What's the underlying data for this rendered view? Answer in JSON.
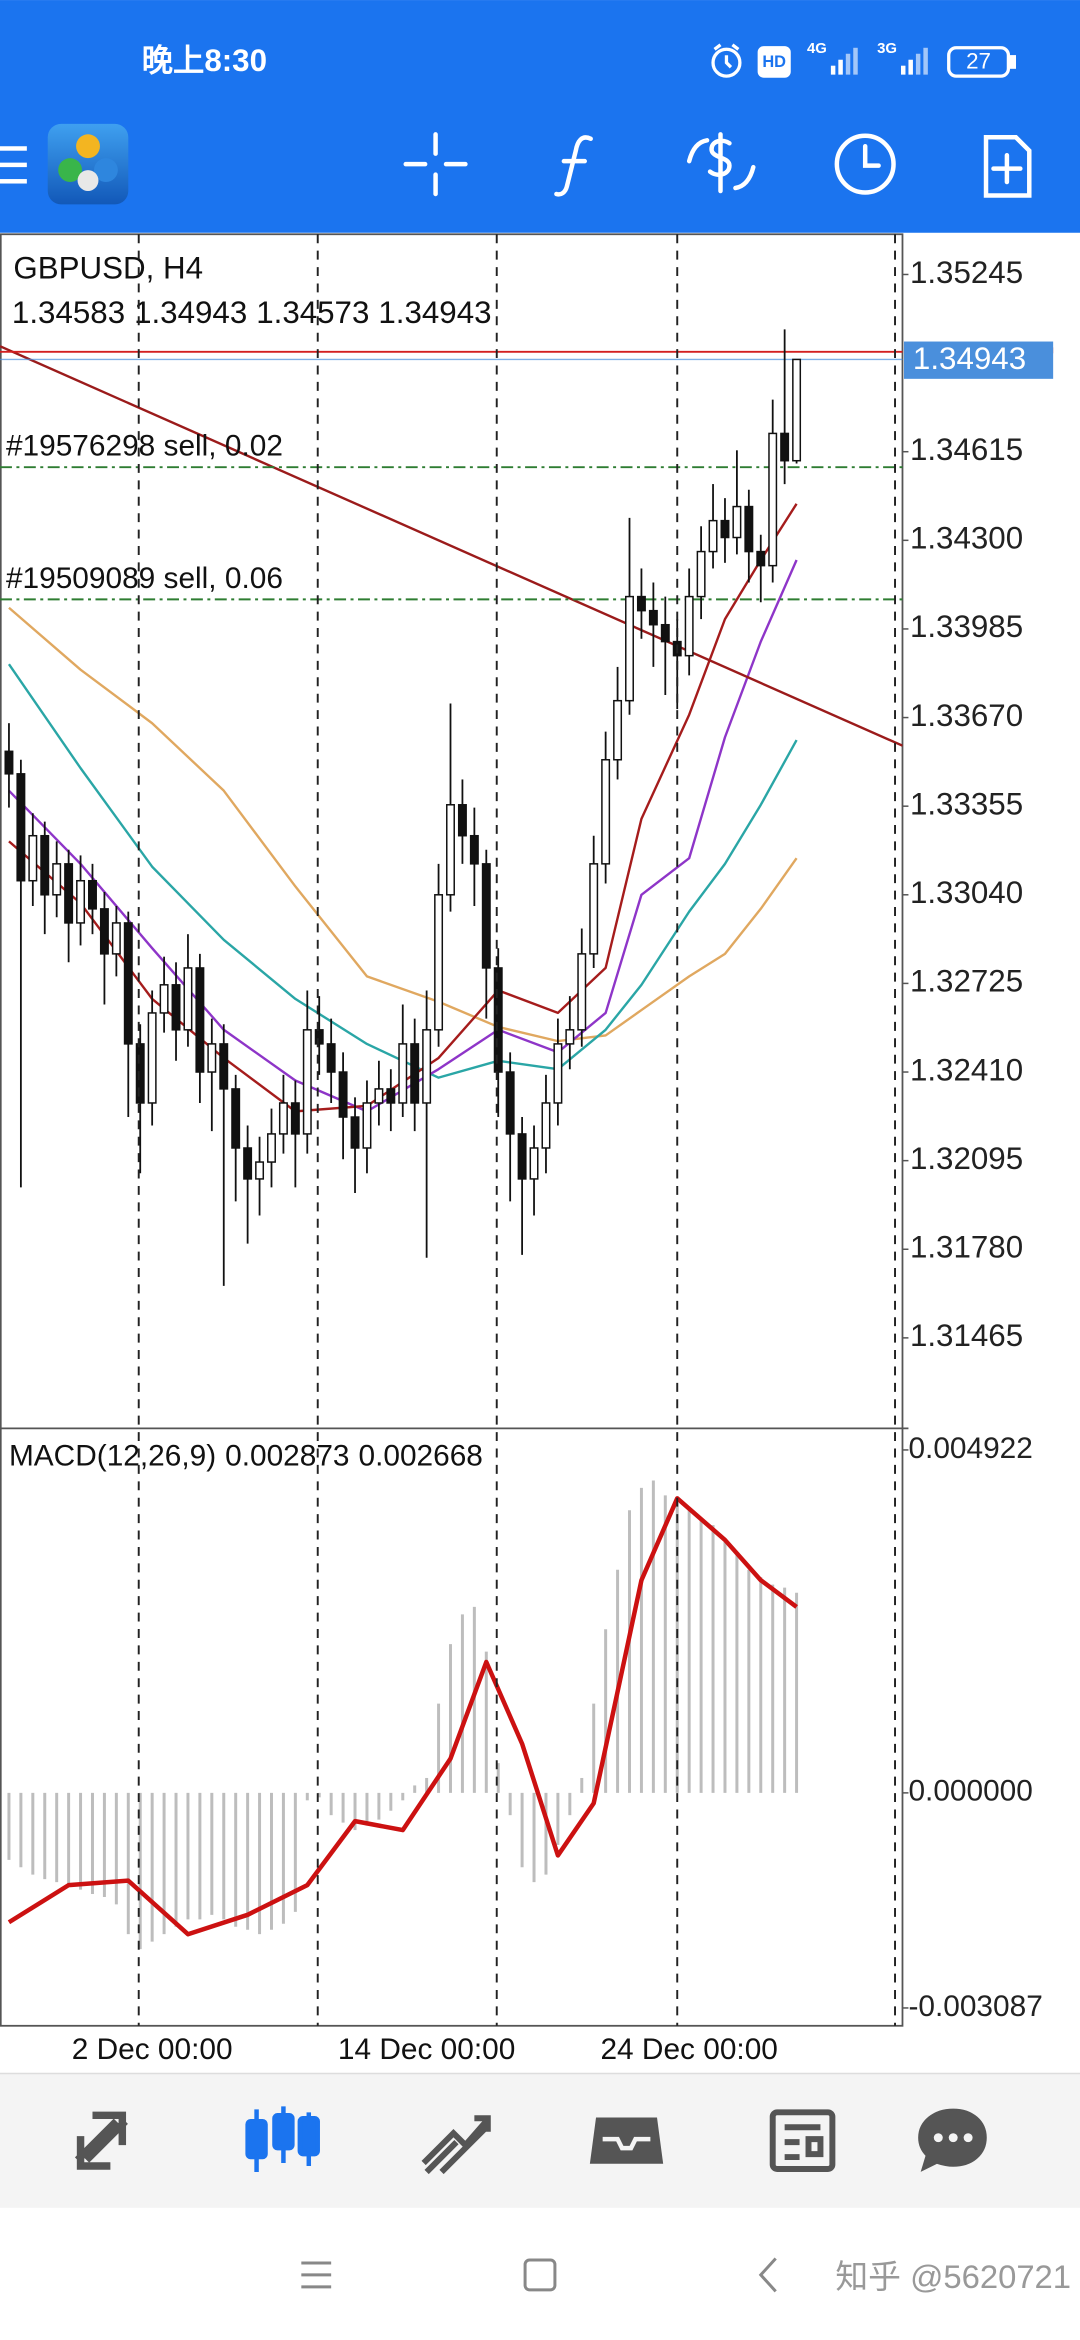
{
  "status_bar": {
    "time": "晚上8:30",
    "hd": "HD",
    "network": [
      "4G",
      "3G"
    ],
    "battery": 27
  },
  "chart_data": {
    "type": "candlestick",
    "symbol": "GBPUSD, H4",
    "ohlc": [
      1.34583,
      1.34943,
      1.34573,
      1.34943
    ],
    "xlim": [
      -0.75,
      74.875
    ],
    "ylim": [
      1.31146,
      1.35388
    ],
    "yticks": [
      1.35245,
      1.34615,
      {
        "value": 1.343,
        "label": "1.34300"
      },
      1.33985,
      {
        "value": 1.3367,
        "label": "1.33670"
      },
      1.33355,
      {
        "value": 1.3304,
        "label": "1.33040"
      },
      1.32725,
      {
        "value": 1.3241,
        "label": "1.32410"
      },
      1.32095,
      {
        "value": 1.3178,
        "label": "1.31780"
      },
      1.31465
    ],
    "bid": 1.34943,
    "bid_color": "#4a8fdc",
    "ask": 1.3497,
    "ask_color": "#d32020",
    "candles": [
      [
        1.3355,
        1.3365,
        1.3335,
        1.3347
      ],
      [
        1.3347,
        1.3352,
        1.32,
        1.3309
      ],
      [
        1.3309,
        1.3333,
        1.33,
        1.3325
      ],
      [
        1.3325,
        1.333,
        1.329,
        1.3304
      ],
      [
        1.3304,
        1.3323,
        1.3296,
        1.3315
      ],
      [
        1.3315,
        1.332,
        1.328,
        1.3294
      ],
      [
        1.3294,
        1.3318,
        1.3286,
        1.3309
      ],
      [
        1.3309,
        1.3315,
        1.329,
        1.3299
      ],
      [
        1.3299,
        1.3305,
        1.3265,
        1.3283
      ],
      [
        1.3283,
        1.33,
        1.3275,
        1.3294
      ],
      [
        1.3294,
        1.3298,
        1.3225,
        1.3251
      ],
      [
        1.3251,
        1.3258,
        1.3205,
        1.323
      ],
      [
        1.323,
        1.327,
        1.3222,
        1.3262
      ],
      [
        1.3262,
        1.3282,
        1.3255,
        1.3272
      ],
      [
        1.3272,
        1.328,
        1.3245,
        1.3256
      ],
      [
        1.3256,
        1.329,
        1.325,
        1.3278
      ],
      [
        1.3278,
        1.3283,
        1.323,
        1.3241
      ],
      [
        1.3241,
        1.326,
        1.322,
        1.3251
      ],
      [
        1.3251,
        1.3258,
        1.3165,
        1.3235
      ],
      [
        1.3235,
        1.324,
        1.3195,
        1.3214
      ],
      [
        1.3214,
        1.3222,
        1.318,
        1.3203
      ],
      [
        1.3203,
        1.3218,
        1.319,
        1.3209
      ],
      [
        1.3209,
        1.3228,
        1.32,
        1.3219
      ],
      [
        1.3219,
        1.324,
        1.3212,
        1.323
      ],
      [
        1.323,
        1.3238,
        1.32,
        1.3219
      ],
      [
        1.3219,
        1.327,
        1.3212,
        1.3256
      ],
      [
        1.3256,
        1.3268,
        1.324,
        1.3251
      ],
      [
        1.3251,
        1.326,
        1.323,
        1.3241
      ],
      [
        1.3241,
        1.3248,
        1.321,
        1.3225
      ],
      [
        1.3225,
        1.3232,
        1.3198,
        1.3214
      ],
      [
        1.3214,
        1.3238,
        1.3205,
        1.323
      ],
      [
        1.323,
        1.3245,
        1.3222,
        1.3235
      ],
      [
        1.3235,
        1.3242,
        1.322,
        1.323
      ],
      [
        1.323,
        1.3265,
        1.3225,
        1.3251
      ],
      [
        1.3251,
        1.326,
        1.322,
        1.323
      ],
      [
        1.323,
        1.327,
        1.3175,
        1.3256
      ],
      [
        1.3256,
        1.3315,
        1.325,
        1.3304
      ],
      [
        1.3304,
        1.3372,
        1.3298,
        1.3336
      ],
      [
        1.3336,
        1.3345,
        1.3315,
        1.3325
      ],
      [
        1.3325,
        1.3335,
        1.33,
        1.3315
      ],
      [
        1.3315,
        1.332,
        1.326,
        1.3278
      ],
      [
        1.3278,
        1.3285,
        1.3225,
        1.3241
      ],
      [
        1.3241,
        1.3248,
        1.3195,
        1.3219
      ],
      [
        1.3219,
        1.3225,
        1.3176,
        1.3203
      ],
      [
        1.3203,
        1.3222,
        1.319,
        1.3214
      ],
      [
        1.3214,
        1.324,
        1.3205,
        1.323
      ],
      [
        1.323,
        1.326,
        1.3222,
        1.3251
      ],
      [
        1.3251,
        1.3268,
        1.3242,
        1.3256
      ],
      [
        1.3256,
        1.3292,
        1.325,
        1.3283
      ],
      [
        1.3283,
        1.3325,
        1.3278,
        1.3315
      ],
      [
        1.3315,
        1.3362,
        1.3308,
        1.3352
      ],
      [
        1.3352,
        1.3385,
        1.3345,
        1.3373
      ],
      [
        1.3373,
        1.3438,
        1.3368,
        1.341
      ],
      [
        1.341,
        1.342,
        1.3395,
        1.3405
      ],
      [
        1.3405,
        1.3415,
        1.3385,
        1.34
      ],
      [
        1.34,
        1.341,
        1.3375,
        1.3394
      ],
      [
        1.3394,
        1.3402,
        1.337,
        1.3389
      ],
      [
        1.3389,
        1.342,
        1.3382,
        1.341
      ],
      [
        1.341,
        1.3435,
        1.3402,
        1.3426
      ],
      [
        1.3426,
        1.345,
        1.342,
        1.3437
      ],
      [
        1.3437,
        1.3445,
        1.3422,
        1.3431
      ],
      [
        1.3431,
        1.3462,
        1.3425,
        1.3442
      ],
      [
        1.3442,
        1.3448,
        1.3415,
        1.3426
      ],
      [
        1.3426,
        1.3432,
        1.3408,
        1.3421
      ],
      [
        1.3421,
        1.348,
        1.3415,
        1.3468
      ],
      [
        1.3468,
        1.3505,
        1.345,
        1.34583
      ],
      [
        1.34583,
        1.34943,
        1.34573,
        1.34943
      ]
    ],
    "moving_averages": {
      "x": [
        0,
        6,
        12,
        18,
        24,
        30,
        36,
        41,
        46,
        50,
        53,
        57,
        60,
        63,
        66
      ],
      "series": [
        {
          "color": "#e0a860",
          "values": [
            1.3406,
            1.3384,
            1.3365,
            1.3341,
            1.3307,
            1.3275,
            1.3266,
            1.3257,
            1.3252,
            1.3254,
            1.3263,
            1.3275,
            1.3283,
            1.3299,
            1.3317
          ]
        },
        {
          "color": "#2aa6a6",
          "values": [
            1.3386,
            1.3349,
            1.3314,
            1.3288,
            1.3267,
            1.3251,
            1.3239,
            1.3245,
            1.3242,
            1.3256,
            1.3272,
            1.3298,
            1.3315,
            1.3336,
            1.3359
          ]
        },
        {
          "color": "#8e35c8",
          "values": [
            1.3341,
            1.3315,
            1.3285,
            1.3256,
            1.3238,
            1.3227,
            1.3242,
            1.3256,
            1.3248,
            1.3262,
            1.3304,
            1.3317,
            1.336,
            1.3394,
            1.3423
          ]
        },
        {
          "color": "#a51c1c",
          "values": [
            1.3323,
            1.3301,
            1.3267,
            1.3246,
            1.3227,
            1.3229,
            1.3246,
            1.327,
            1.3262,
            1.3278,
            1.3331,
            1.3368,
            1.3402,
            1.3423,
            1.3443
          ]
        }
      ]
    },
    "trendline": {
      "x": [
        -0.75,
        74.875
      ],
      "values": [
        1.3499,
        1.3357
      ],
      "color": "#9b1b1b"
    },
    "orders": [
      {
        "label": "#19576298 sell, 0.02",
        "price": 1.3456
      },
      {
        "label": "#19509089 sell, 0.06",
        "price": 1.3409
      }
    ],
    "order_color": "#2e7d32",
    "xgrid": [
      10.875,
      25.875,
      40.875,
      56,
      74.25
    ],
    "xticks": [
      {
        "value": 12,
        "label": "2 Dec 00:00"
      },
      {
        "value": 35,
        "label": "14 Dec 00:00"
      },
      {
        "value": 57,
        "label": "24 Dec 00:00"
      }
    ],
    "macd": {
      "title": "MACD(12,26,9)",
      "main": 0.002873,
      "signal": 0.002668,
      "ylim": [
        -0.003343,
        0.005221
      ],
      "yticks": [
        0.004922,
        {
          "value": 0,
          "label": "0.000000"
        },
        -0.003087
      ],
      "histogram_color": "#bdbdbd",
      "histogram": [
        -0.000961,
        -0.001068,
        -0.001174,
        -0.001238,
        -0.001281,
        -0.001324,
        -0.001388,
        -0.001452,
        -0.001495,
        -0.001601,
        -0.002028,
        -0.002242,
        -0.002135,
        -0.002028,
        -0.001922,
        -0.001815,
        -0.001815,
        -0.001751,
        -0.001815,
        -0.001922,
        -0.001964,
        -0.002028,
        -0.001964,
        -0.001879,
        -0.001708,
        -0.000107,
        -6.4e-05,
        -0.00032,
        -0.000427,
        -0.000534,
        -0.00047,
        -0.000384,
        -0.000256,
        -0.000107,
        0.000107,
        0.000214,
        0.001281,
        0.002135,
        0.002562,
        0.002669,
        0.002028,
        0.000427,
        -0.00032,
        -0.001068,
        -0.001281,
        -0.001174,
        -0.000747,
        -0.00032,
        0.000214,
        0.001281,
        0.002349,
        0.003203,
        0.004057,
        0.004377,
        0.004484,
        0.00427,
        0.004163,
        0.004057,
        0.00395,
        0.003843,
        0.00363,
        0.003416,
        0.003203,
        0.003096,
        0.002989,
        0.002946,
        0.002873
      ],
      "signal_line": {
        "color": "#cc1111",
        "x": [
          0,
          5,
          10,
          15,
          20,
          25,
          29,
          33,
          37,
          40,
          43,
          46,
          49,
          53,
          56,
          60,
          63,
          66
        ],
        "values": [
          -0.001857,
          -0.001324,
          -0.00126,
          -0.002028,
          -0.001751,
          -0.001324,
          -0.000406,
          -0.000534,
          0.000491,
          0.001879,
          0.000705,
          -0.000897,
          -0.000149,
          0.003053,
          0.004227,
          0.00363,
          0.003053,
          0.002668
        ]
      }
    }
  },
  "watermark": "知乎 @5620721"
}
